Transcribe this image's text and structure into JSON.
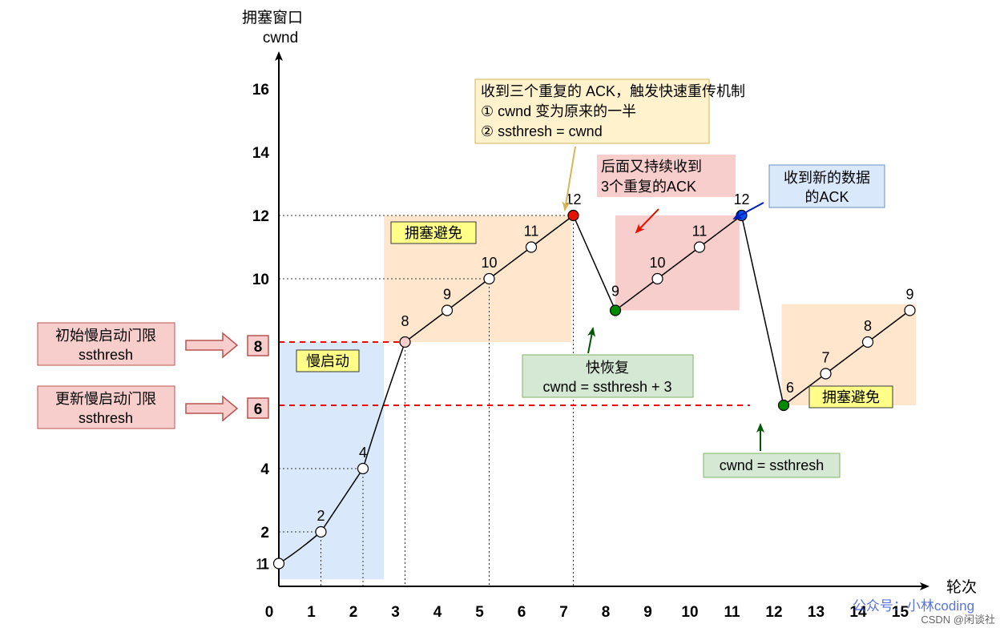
{
  "chart_data": {
    "type": "line",
    "ylabel_line1": "拥塞窗口",
    "ylabel_line2": "cwnd",
    "xlabel": "轮次",
    "x_ticks": [
      0,
      1,
      2,
      3,
      4,
      5,
      6,
      7,
      8,
      9,
      10,
      11,
      12,
      13,
      14,
      15
    ],
    "y_ticks": [
      1,
      2,
      4,
      6,
      8,
      10,
      12,
      14,
      16
    ],
    "x_range": [
      0,
      15.3
    ],
    "y_range": [
      0,
      17.2
    ],
    "segments": [
      {
        "points": [
          [
            0,
            1
          ],
          [
            1,
            2
          ],
          [
            2,
            4
          ],
          [
            3,
            8
          ]
        ],
        "style": "curve"
      },
      {
        "points": [
          [
            3,
            8
          ],
          [
            4,
            9
          ],
          [
            5,
            10
          ],
          [
            6,
            11
          ],
          [
            7,
            12
          ]
        ],
        "style": "line"
      },
      {
        "points": [
          [
            7,
            12
          ],
          [
            8,
            9
          ]
        ],
        "style": "line"
      },
      {
        "points": [
          [
            8,
            9
          ],
          [
            9,
            10
          ],
          [
            10,
            11
          ],
          [
            11,
            12
          ]
        ],
        "style": "line"
      },
      {
        "points": [
          [
            11,
            12
          ],
          [
            12,
            6
          ]
        ],
        "style": "line"
      },
      {
        "points": [
          [
            12,
            6
          ],
          [
            13,
            7
          ],
          [
            14,
            8
          ],
          [
            15,
            9
          ]
        ],
        "style": "line"
      }
    ],
    "points": [
      {
        "x": 0,
        "y": 1,
        "label": "1",
        "fill": "#ffffff"
      },
      {
        "x": 1,
        "y": 2,
        "label": "2",
        "fill": "#ffffff"
      },
      {
        "x": 2,
        "y": 4,
        "label": "4",
        "fill": "#ffffff"
      },
      {
        "x": 3,
        "y": 8,
        "label": "8",
        "fill": "#f8cecc"
      },
      {
        "x": 4,
        "y": 9,
        "label": "9",
        "fill": "#ffffff"
      },
      {
        "x": 5,
        "y": 10,
        "label": "10",
        "fill": "#ffffff"
      },
      {
        "x": 6,
        "y": 11,
        "label": "11",
        "fill": "#ffffff"
      },
      {
        "x": 7,
        "y": 12,
        "label": "12",
        "fill": "#e51400"
      },
      {
        "x": 8,
        "y": 9,
        "label": "9",
        "fill": "#008a00"
      },
      {
        "x": 9,
        "y": 10,
        "label": "10",
        "fill": "#ffffff"
      },
      {
        "x": 10,
        "y": 11,
        "label": "11",
        "fill": "#ffffff"
      },
      {
        "x": 11,
        "y": 12,
        "label": "12",
        "fill": "#0050ef"
      },
      {
        "x": 12,
        "y": 6,
        "label": "6",
        "fill": "#008a00"
      },
      {
        "x": 13,
        "y": 7,
        "label": "7",
        "fill": "#ffffff"
      },
      {
        "x": 14,
        "y": 8,
        "label": "8",
        "fill": "#ffffff"
      },
      {
        "x": 15,
        "y": 9,
        "label": "9",
        "fill": "#ffffff"
      }
    ],
    "guides_vertical": [
      1,
      2,
      3,
      5,
      7
    ],
    "guides_horizontal": [
      {
        "y": 2,
        "to_x": 1
      },
      {
        "y": 4,
        "to_x": 2
      },
      {
        "y": 10,
        "to_x": 5
      },
      {
        "y": 12,
        "to_x": 7
      }
    ],
    "threshold_lines": [
      {
        "y": 8,
        "to_x": 3
      },
      {
        "y": 6,
        "to_x": 11.2
      }
    ],
    "regions": [
      {
        "name": "slow-start-region",
        "x0": 0,
        "x1": 2.5,
        "x0b": 0,
        "y0": 0.5,
        "y1": 8,
        "fill": "#dae8fc",
        "xr": [
          0,
          2.5
        ]
      },
      {
        "name": "avoidance-region-1",
        "xr": [
          2.5,
          6.95
        ],
        "yr": [
          8,
          12
        ],
        "fill": "#ffe6cc"
      },
      {
        "name": "retransmit-region",
        "xr": [
          8,
          10.95
        ],
        "yr": [
          9,
          12
        ],
        "fill": "#f8cecc"
      },
      {
        "name": "avoidance-region-2",
        "xr": [
          11.95,
          15.15
        ],
        "yr": [
          6,
          9.2
        ],
        "fill": "#ffe6cc"
      }
    ],
    "labels": {
      "slow_start": "慢启动",
      "avoidance_1": "拥塞避免",
      "avoidance_2": "拥塞避免",
      "init_ssthresh_line1": "初始慢启动门限",
      "init_ssthresh_line2": "ssthresh",
      "new_ssthresh_line1": "更新慢启动门限",
      "new_ssthresh_line2": "ssthresh",
      "marker_8": "8",
      "marker_6": "6",
      "triple_ack_line1": "收到三个重复的 ACK，触发快速重传机制",
      "triple_ack_line2": "① cwnd 变为原来的一半",
      "triple_ack_line3": "② ssthresh = cwnd",
      "more_dup_line1": "后面又持续收到",
      "more_dup_line2": "3个重复的ACK",
      "new_ack_line1": "收到新的数据",
      "new_ack_line2": "的ACK",
      "fast_recovery_line1": "快恢复",
      "fast_recovery_line2": "cwnd = ssthresh + 3",
      "cwnd_eq_line1": "cwnd = ssthresh",
      "watermark": "公众号：小林coding",
      "csdn": "CSDN @闲谈社"
    },
    "colors": {
      "axis": "#000000",
      "threshold": "#ff0000",
      "blue_box": "#dae8fc",
      "orange_box": "#ffe6cc",
      "red_box": "#f8cecc",
      "green_box": "#d5e8d4",
      "yellow_label": "#ffff88",
      "arrow_yellow": "#d6b656",
      "arrow_red": "#e51400",
      "arrow_blue": "#001dbc",
      "arrow_green": "#005700",
      "watermark": "#3b5bdb"
    }
  }
}
